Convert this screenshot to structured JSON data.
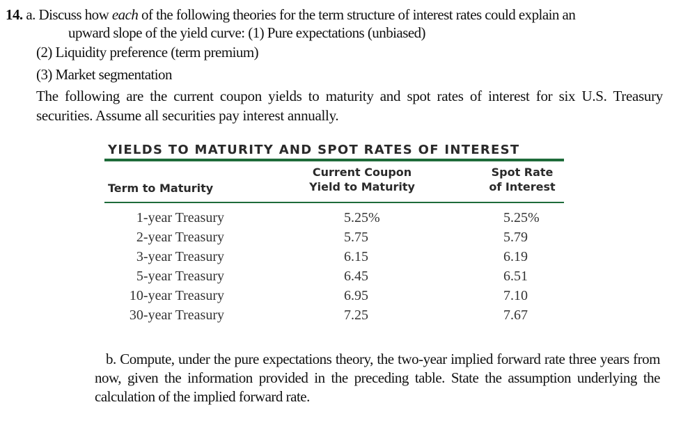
{
  "question": {
    "number": "14.",
    "part_a_label": "a.",
    "part_a_line1_pre": "Discuss how ",
    "part_a_emph": "each",
    "part_a_line1_post": " of the following theories for the term structure of interest rates could explain an",
    "part_a_line2": "upward slope of the yield curve: (1) Pure expectations (unbiased)",
    "option2": "(2) Liquidity preference (term premium)",
    "option3": "(3) Market segmentation",
    "intro": "The following are the current coupon yields to maturity and spot rates of interest for six U.S. Treasury securities. Assume all securities pay interest annually.",
    "part_b": "b. Compute, under the pure expectations theory, the two-year implied forward rate three years from now, given the information provided in the preceding table. State the assumption underlying the calculation of the implied forward rate."
  },
  "table": {
    "title": "YIELDS TO MATURITY AND SPOT RATES OF INTEREST",
    "col_term": "Term to Maturity",
    "col_ytm_1": "Current Coupon",
    "col_ytm_2": "Yield to Maturity",
    "col_spot_1": "Spot Rate",
    "col_spot_2": "of Interest",
    "rows": [
      {
        "term": "1-year Treasury",
        "ytm": "5.25%",
        "spot": "5.25%"
      },
      {
        "term": "2-year Treasury",
        "ytm": "5.75",
        "spot": "5.79"
      },
      {
        "term": "3-year Treasury",
        "ytm": "6.15",
        "spot": "6.19"
      },
      {
        "term": "5-year Treasury",
        "ytm": "6.45",
        "spot": "6.51"
      },
      {
        "term": "10-year Treasury",
        "ytm": "6.95",
        "spot": "7.10"
      },
      {
        "term": "30-year Treasury",
        "ytm": "7.25",
        "spot": "7.67"
      }
    ]
  },
  "colors": {
    "rule": "#1e6b3a"
  }
}
